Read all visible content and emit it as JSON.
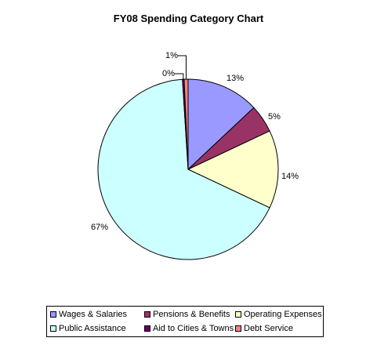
{
  "chart_data": {
    "type": "pie",
    "title": "FY08 Spending Category Chart",
    "slices": [
      {
        "label": "Wages & Salaries",
        "value": 13,
        "display": "13%",
        "color": "#9999ff"
      },
      {
        "label": "Pensions & Benefits",
        "value": 5,
        "display": "5%",
        "color": "#993366"
      },
      {
        "label": "Operating Expenses",
        "value": 14,
        "display": "14%",
        "color": "#ffffcc"
      },
      {
        "label": "Public Assistance",
        "value": 67,
        "display": "67%",
        "color": "#ccffff"
      },
      {
        "label": "Aid to Cities & Towns",
        "value": 0.3,
        "display": "0%",
        "color": "#660066"
      },
      {
        "label": "Debt Service",
        "value": 0.7,
        "display": "1%",
        "color": "#ff8080"
      }
    ],
    "legend_position": "bottom"
  }
}
